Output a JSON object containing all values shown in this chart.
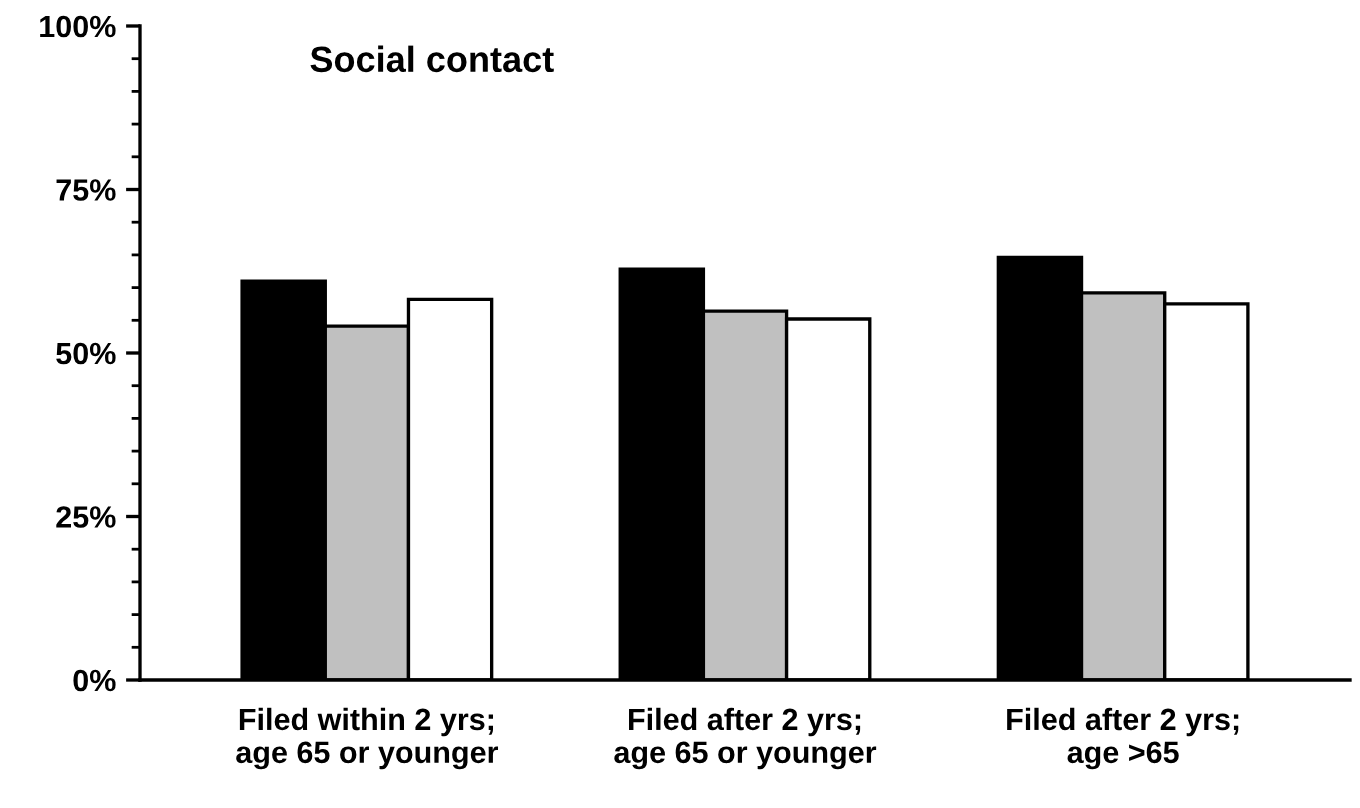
{
  "chart_data": {
    "type": "bar",
    "title": "Social contact",
    "categories": [
      "Filed within 2 yrs;\nage 65 or younger",
      "Filed after 2 yrs;\nage 65 or younger",
      "Filed after 2 yrs;\nage >65"
    ],
    "series": [
      {
        "color": "#000000",
        "values": [
          61,
          62.8,
          64.6
        ]
      },
      {
        "color": "#c0c0c0",
        "values": [
          54.1,
          56.4,
          59.2
        ]
      },
      {
        "color": "#ffffff",
        "values": [
          58.2,
          55.2,
          57.5
        ]
      }
    ],
    "ylim": [
      0,
      100
    ],
    "yticks": [
      {
        "value": 0,
        "label": "0%"
      },
      {
        "value": 25,
        "label": "25%"
      },
      {
        "value": 50,
        "label": "50%"
      },
      {
        "value": 75,
        "label": "75%"
      },
      {
        "value": 100,
        "label": "100%"
      }
    ],
    "grid": false,
    "legend": false
  }
}
